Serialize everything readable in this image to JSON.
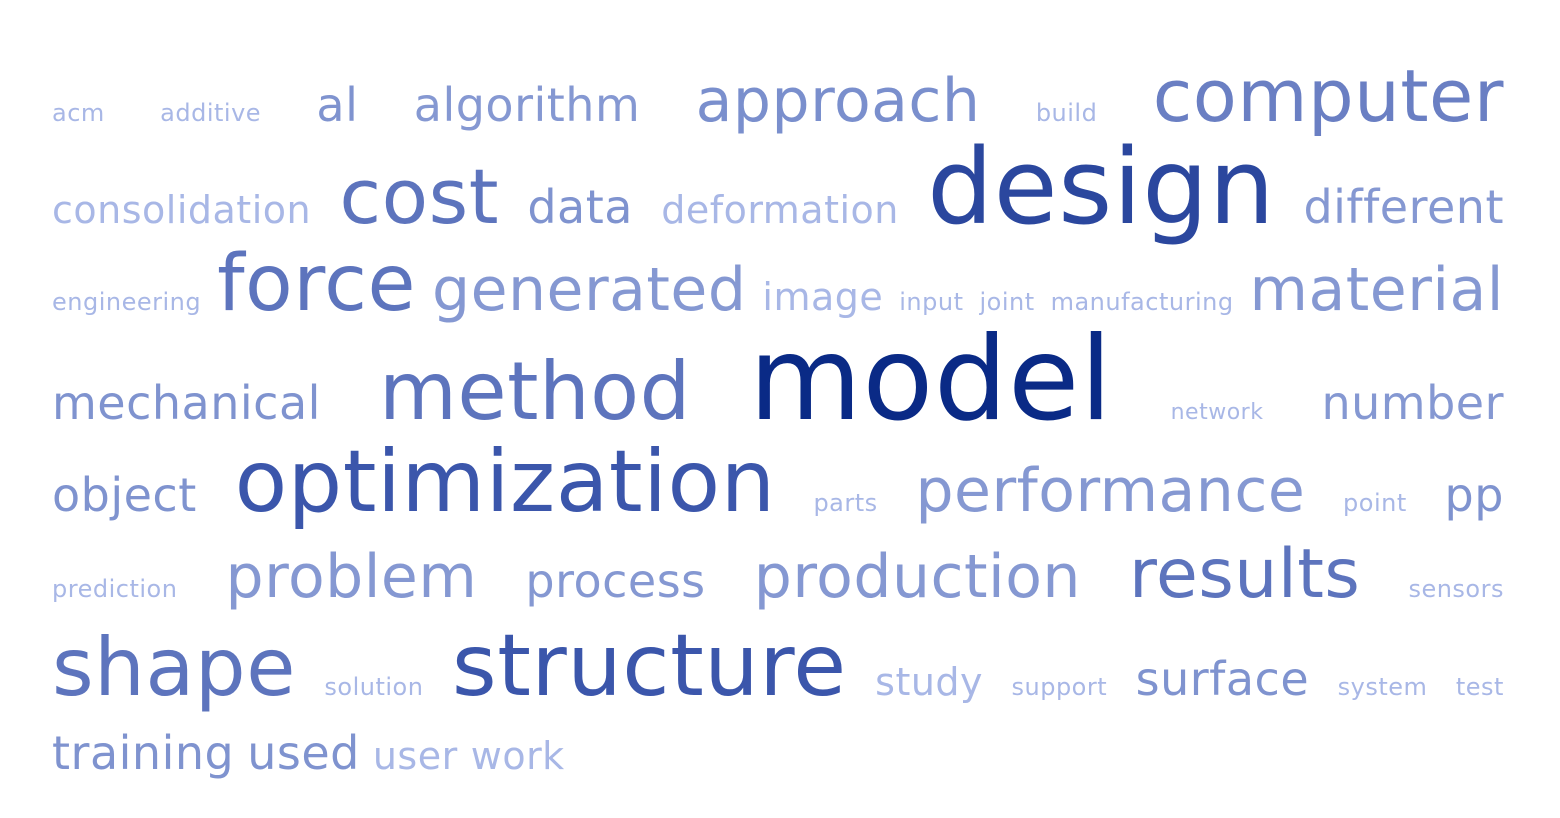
{
  "rows": [
    {
      "words": [
        {
          "text": "acm",
          "size": 24,
          "color": "#a8b7e6"
        },
        {
          "text": "additive",
          "size": 24,
          "color": "#a8b7e6"
        },
        {
          "text": "al",
          "size": 46,
          "color": "#7f93cf"
        },
        {
          "text": "algorithm",
          "size": 46,
          "color": "#8598d2"
        },
        {
          "text": "approach",
          "size": 60,
          "color": "#7a8fcd"
        },
        {
          "text": "build",
          "size": 24,
          "color": "#a8b7e6"
        },
        {
          "text": "computer",
          "size": 72,
          "color": "#6a7fc3"
        }
      ]
    },
    {
      "words": [
        {
          "text": "consolidation",
          "size": 38,
          "color": "#a8b7e6"
        },
        {
          "text": "cost",
          "size": 76,
          "color": "#5d74bd"
        },
        {
          "text": "data",
          "size": 46,
          "color": "#7f93cf"
        },
        {
          "text": "deformation",
          "size": 38,
          "color": "#a8b7e6"
        },
        {
          "text": "design",
          "size": 104,
          "color": "#2b479e"
        },
        {
          "text": "different",
          "size": 46,
          "color": "#8598d2"
        }
      ]
    },
    {
      "words": [
        {
          "text": "engineering",
          "size": 24,
          "color": "#a8b7e6"
        },
        {
          "text": "force",
          "size": 78,
          "color": "#5d74bd"
        },
        {
          "text": "generated",
          "size": 60,
          "color": "#8598d2"
        },
        {
          "text": "image",
          "size": 38,
          "color": "#a8b7e6"
        },
        {
          "text": "input",
          "size": 24,
          "color": "#a8b7e6"
        },
        {
          "text": "joint",
          "size": 24,
          "color": "#a8b7e6"
        },
        {
          "text": "manufacturing",
          "size": 24,
          "color": "#a8b7e6"
        },
        {
          "text": "material",
          "size": 60,
          "color": "#8598d2"
        }
      ]
    },
    {
      "words": [
        {
          "text": "mechanical",
          "size": 46,
          "color": "#7f93cf"
        },
        {
          "text": "method",
          "size": 80,
          "color": "#5d74bd"
        },
        {
          "text": "model",
          "size": 116,
          "color": "#0a2a86"
        },
        {
          "text": "network",
          "size": 22,
          "color": "#a8b7e6"
        },
        {
          "text": "number",
          "size": 46,
          "color": "#8598d2"
        }
      ]
    },
    {
      "words": [
        {
          "text": "object",
          "size": 46,
          "color": "#7f93cf"
        },
        {
          "text": "optimization",
          "size": 86,
          "color": "#3b56ab"
        },
        {
          "text": "parts",
          "size": 24,
          "color": "#a8b7e6"
        },
        {
          "text": "performance",
          "size": 60,
          "color": "#8598d2"
        },
        {
          "text": "point",
          "size": 24,
          "color": "#a8b7e6"
        },
        {
          "text": "pp",
          "size": 46,
          "color": "#7f93cf"
        }
      ]
    },
    {
      "words": [
        {
          "text": "prediction",
          "size": 24,
          "color": "#a8b7e6"
        },
        {
          "text": "problem",
          "size": 60,
          "color": "#8598d2"
        },
        {
          "text": "process",
          "size": 46,
          "color": "#8598d2"
        },
        {
          "text": "production",
          "size": 60,
          "color": "#8598d2"
        },
        {
          "text": "results",
          "size": 68,
          "color": "#5d74bd"
        },
        {
          "text": "sensors",
          "size": 24,
          "color": "#a8b7e6"
        }
      ]
    },
    {
      "words": [
        {
          "text": "shape",
          "size": 80,
          "color": "#5d74bd"
        },
        {
          "text": "solution",
          "size": 24,
          "color": "#a8b7e6"
        },
        {
          "text": "structure",
          "size": 86,
          "color": "#3b56ab"
        },
        {
          "text": "study",
          "size": 38,
          "color": "#a8b7e6"
        },
        {
          "text": "support",
          "size": 24,
          "color": "#a8b7e6"
        },
        {
          "text": "surface",
          "size": 46,
          "color": "#7f93cf"
        },
        {
          "text": "system",
          "size": 24,
          "color": "#a8b7e6"
        },
        {
          "text": "test",
          "size": 24,
          "color": "#a8b7e6"
        }
      ]
    },
    {
      "packed": true,
      "words": [
        {
          "text": "training",
          "size": 46,
          "color": "#7f93cf"
        },
        {
          "text": "used",
          "size": 46,
          "color": "#7f93cf"
        },
        {
          "text": "user",
          "size": 38,
          "color": "#a8b7e6"
        },
        {
          "text": "work",
          "size": 38,
          "color": "#a8b7e6"
        }
      ]
    }
  ]
}
